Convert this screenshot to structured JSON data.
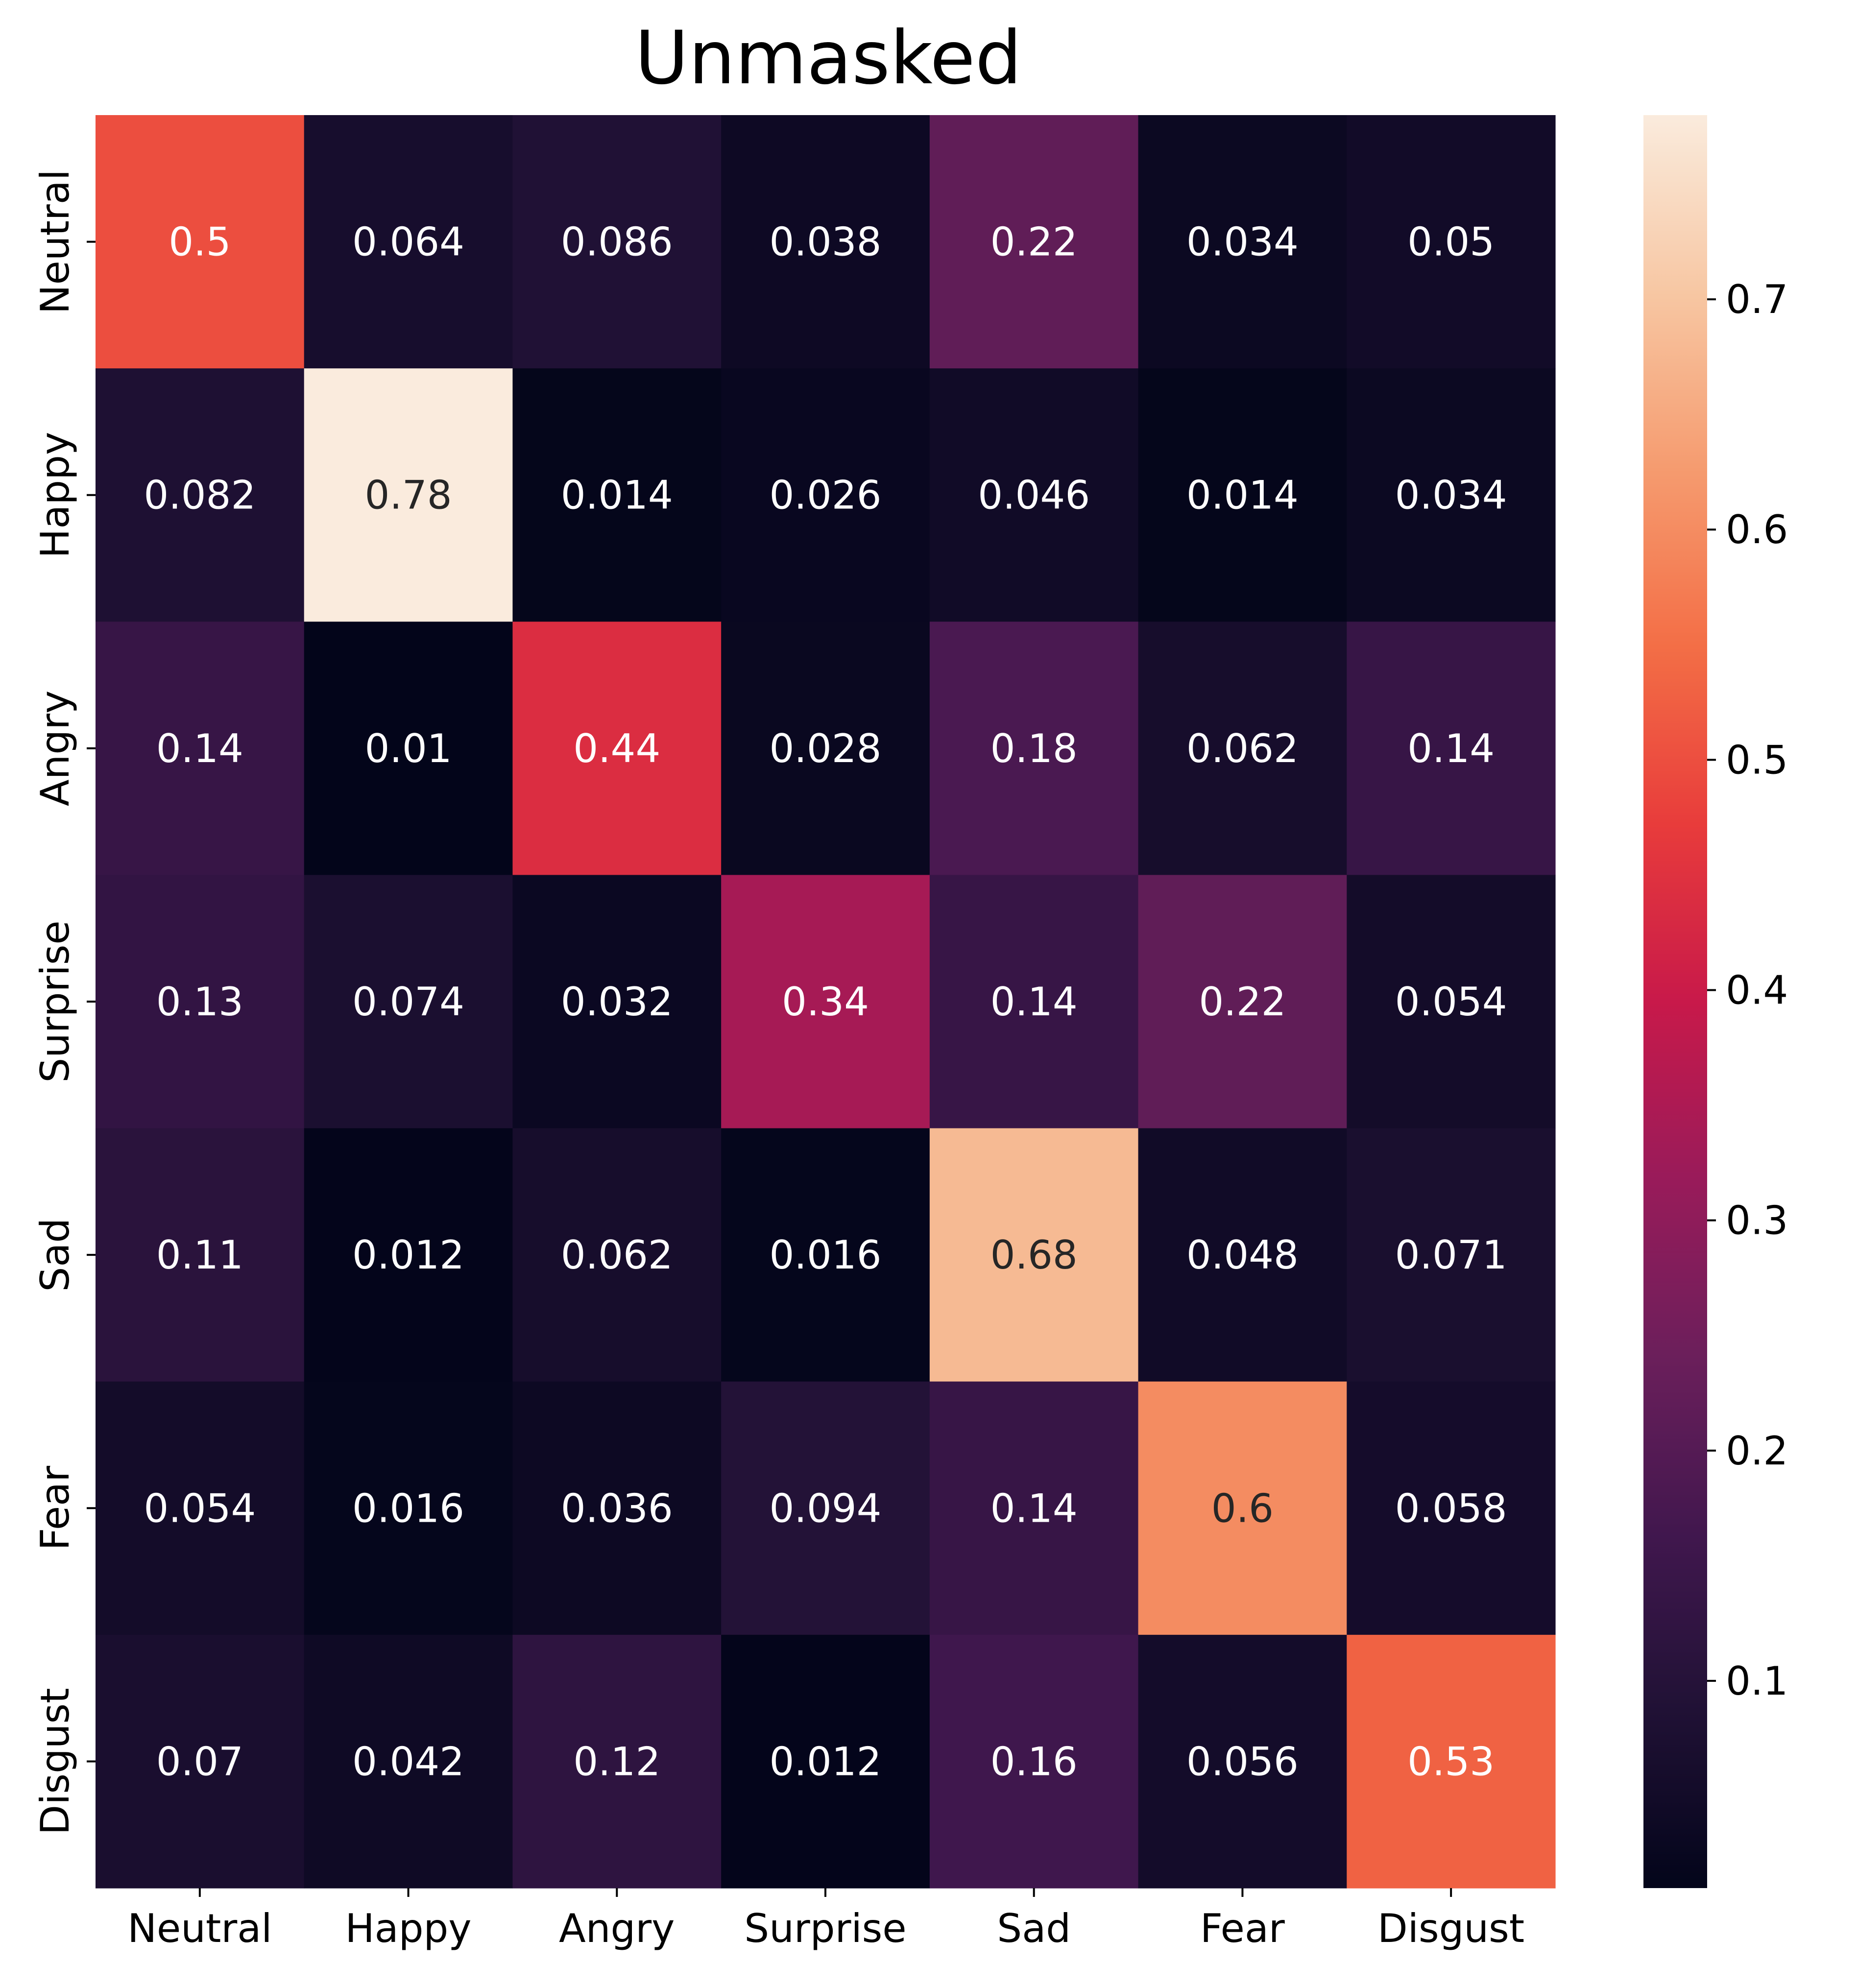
{
  "chart_data": {
    "type": "heatmap",
    "title": "Unmasked",
    "xlabel": "",
    "ylabel": "",
    "x_categories": [
      "Neutral",
      "Happy",
      "Angry",
      "Surprise",
      "Sad",
      "Fear",
      "Disgust"
    ],
    "y_categories": [
      "Neutral",
      "Happy",
      "Angry",
      "Surprise",
      "Sad",
      "Fear",
      "Disgust"
    ],
    "values": [
      [
        0.5,
        0.064,
        0.086,
        0.038,
        0.22,
        0.034,
        0.05
      ],
      [
        0.082,
        0.78,
        0.014,
        0.026,
        0.046,
        0.014,
        0.034
      ],
      [
        0.14,
        0.01,
        0.44,
        0.028,
        0.18,
        0.062,
        0.14
      ],
      [
        0.13,
        0.074,
        0.032,
        0.34,
        0.14,
        0.22,
        0.054
      ],
      [
        0.11,
        0.012,
        0.062,
        0.016,
        0.68,
        0.048,
        0.071
      ],
      [
        0.054,
        0.016,
        0.036,
        0.094,
        0.14,
        0.6,
        0.058
      ],
      [
        0.07,
        0.042,
        0.12,
        0.012,
        0.16,
        0.056,
        0.53
      ]
    ],
    "cell_labels": [
      [
        "0.5",
        "0.064",
        "0.086",
        "0.038",
        "0.22",
        "0.034",
        "0.05"
      ],
      [
        "0.082",
        "0.78",
        "0.014",
        "0.026",
        "0.046",
        "0.014",
        "0.034"
      ],
      [
        "0.14",
        "0.01",
        "0.44",
        "0.028",
        "0.18",
        "0.062",
        "0.14"
      ],
      [
        "0.13",
        "0.074",
        "0.032",
        "0.34",
        "0.14",
        "0.22",
        "0.054"
      ],
      [
        "0.11",
        "0.012",
        "0.062",
        "0.016",
        "0.68",
        "0.048",
        "0.071"
      ],
      [
        "0.054",
        "0.016",
        "0.036",
        "0.094",
        "0.14",
        "0.6",
        "0.058"
      ],
      [
        "0.07",
        "0.042",
        "0.12",
        "0.012",
        "0.16",
        "0.056",
        "0.53"
      ]
    ],
    "colorscale": "rocket",
    "color_range": [
      0.01,
      0.78
    ],
    "colorbar": {
      "ticks": [
        0.1,
        0.2,
        0.3,
        0.4,
        0.5,
        0.6,
        0.7
      ],
      "tick_labels": [
        "0.1",
        "0.2",
        "0.3",
        "0.4",
        "0.5",
        "0.6",
        "0.7"
      ]
    },
    "grid": false,
    "legend": "colorbar-right"
  }
}
